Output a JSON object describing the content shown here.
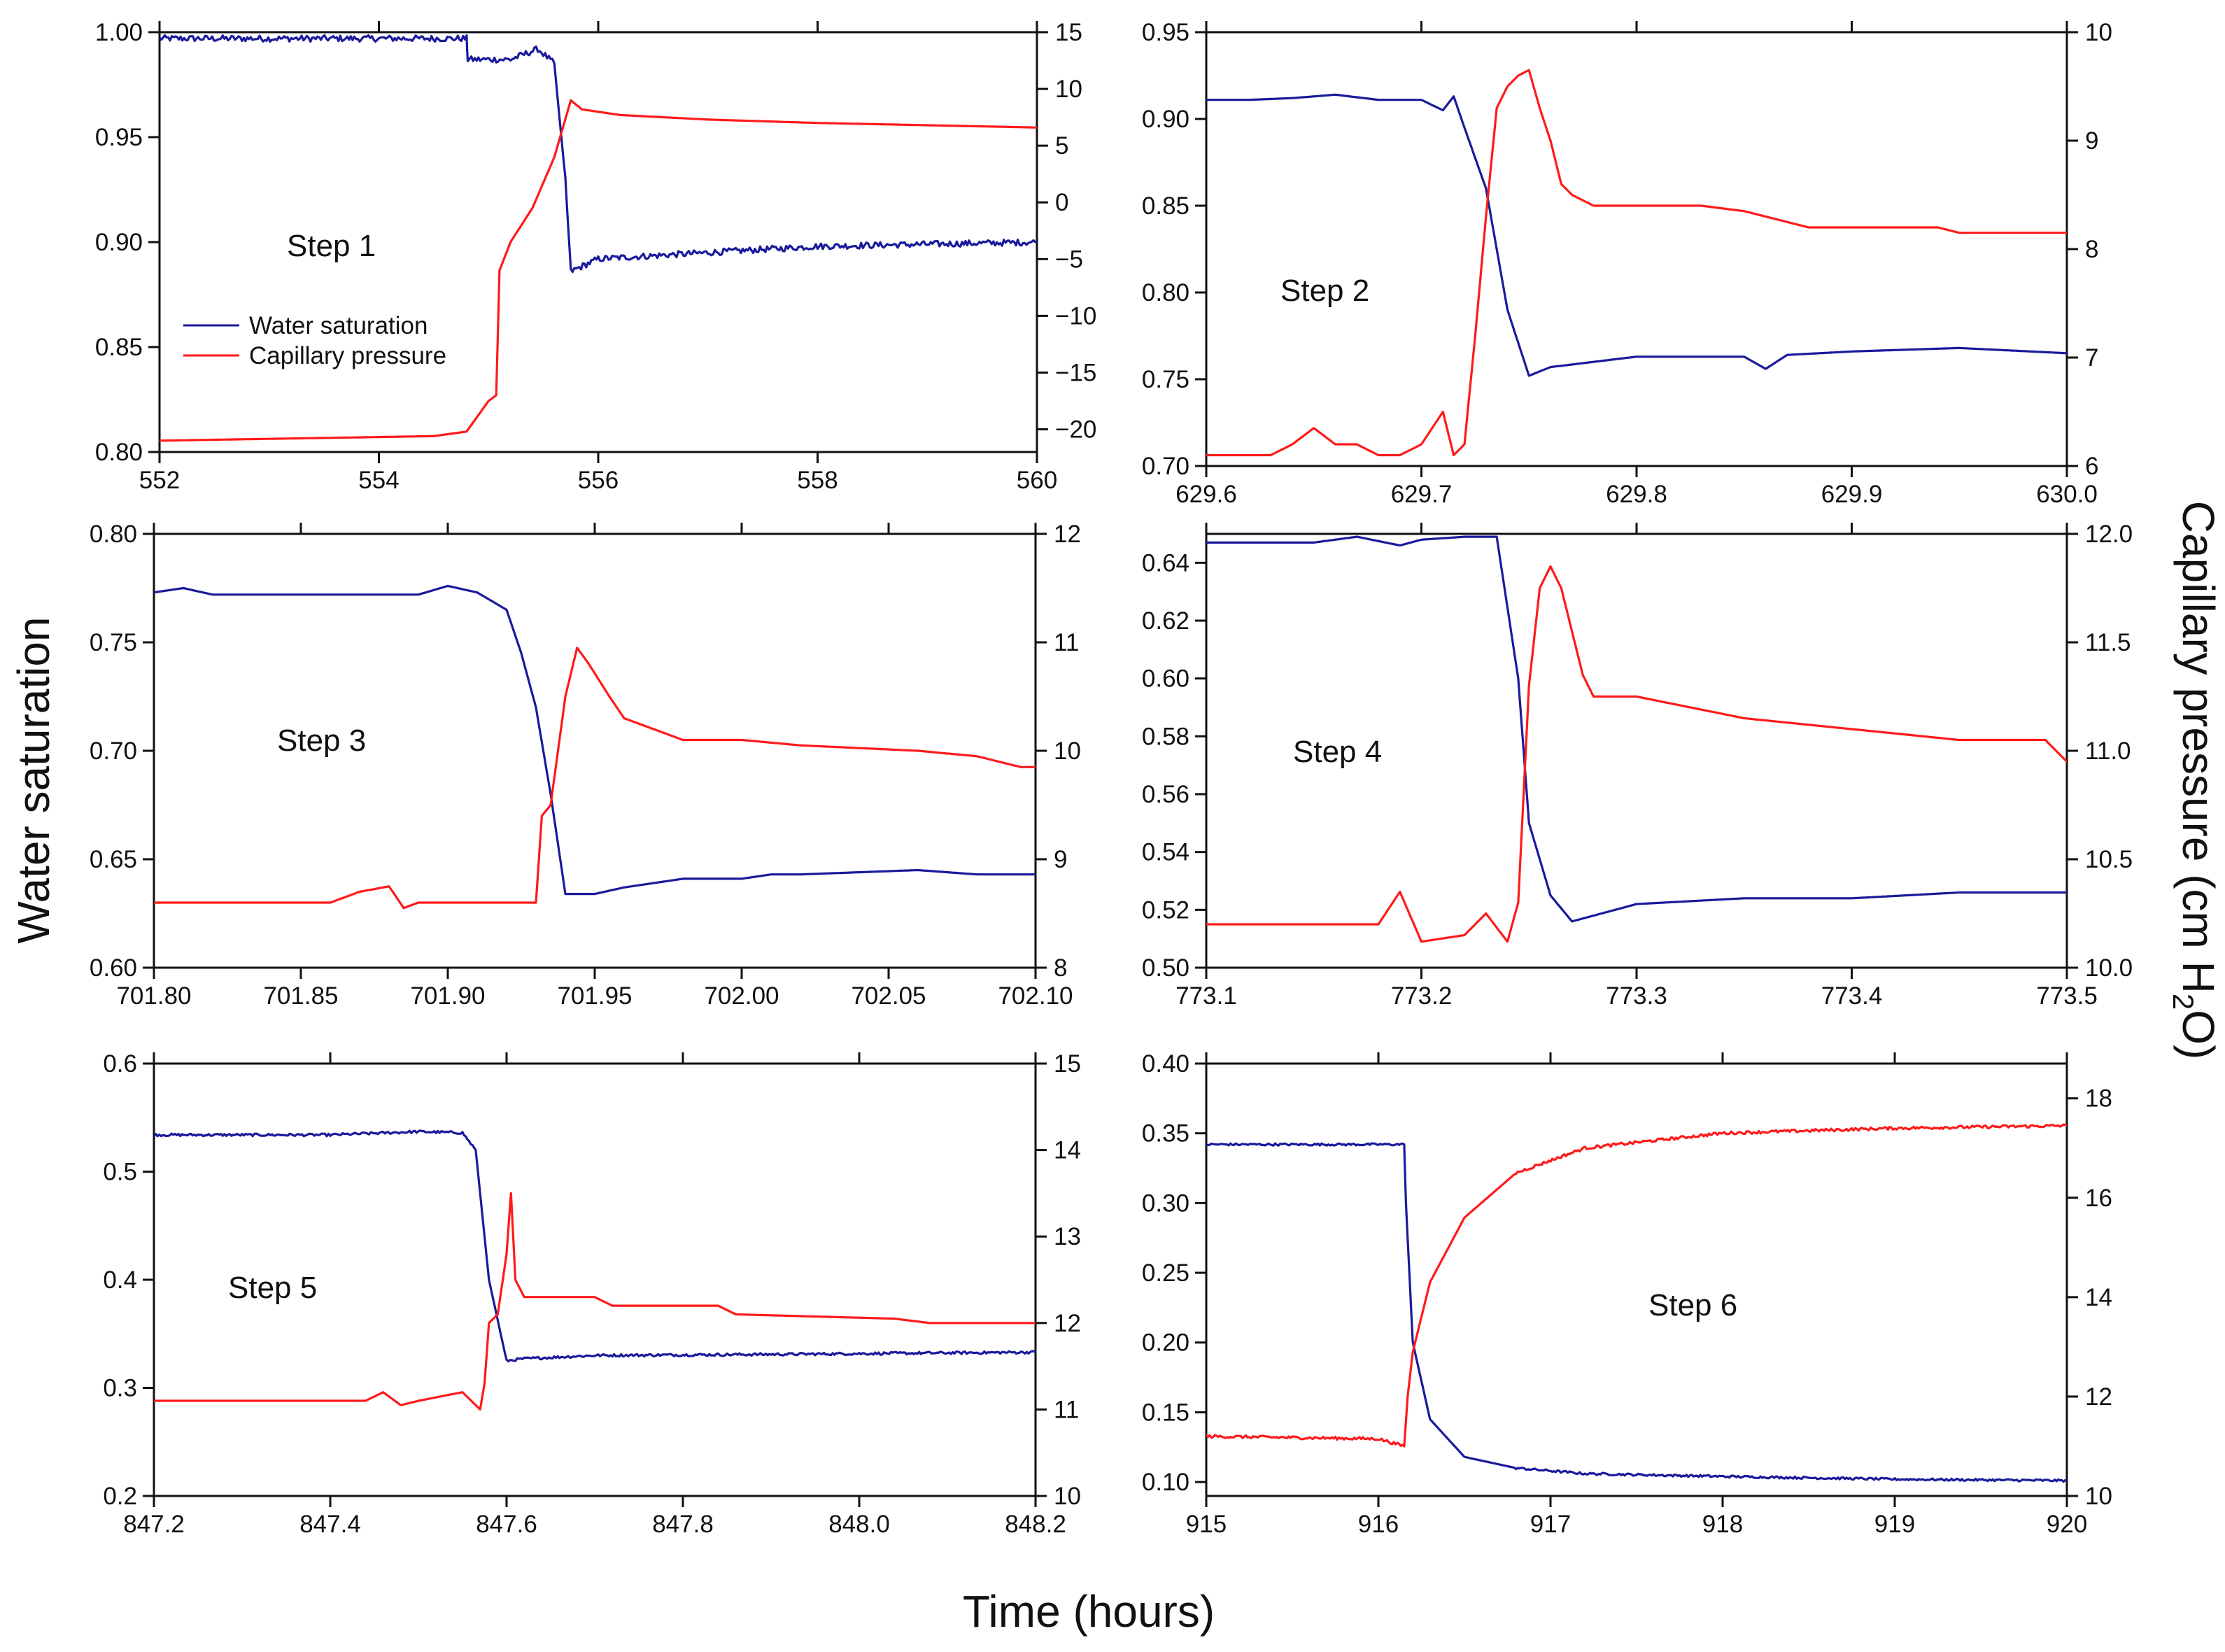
{
  "figure": {
    "xlabel": "Time (hours)",
    "ylabel_left": "Water saturation",
    "ylabel_right_main": "Capillary pressure (cm H",
    "ylabel_right_sub": "2",
    "ylabel_right_end": "O)"
  },
  "legend": {
    "items": [
      {
        "label": "Water saturation",
        "color": "#1a1a9c"
      },
      {
        "label": "Capillary pressure",
        "color": "#ff1a1a"
      }
    ]
  },
  "colors": {
    "saturation": "#1a1a9c",
    "pressure": "#ff1a1a",
    "axis": "#111111"
  },
  "chart_data": [
    {
      "type": "line",
      "label": "Step 1",
      "xlim": [
        552,
        560
      ],
      "ylim_left": [
        0.8,
        1.0
      ],
      "ylim_right": [
        -22,
        15
      ],
      "xticks": [
        552,
        554,
        556,
        558,
        560
      ],
      "xtick_labels": [
        "552",
        "554",
        "556",
        "558",
        "560"
      ],
      "yticks_left": [
        0.8,
        0.85,
        0.9,
        0.95,
        1.0
      ],
      "ytick_labels_left": [
        "0.80",
        "0.85",
        "0.90",
        "0.95",
        "1.00"
      ],
      "yticks_right": [
        -20,
        -15,
        -10,
        -5,
        0,
        5,
        10,
        15
      ],
      "ytick_labels_right": [
        "−20",
        "−15",
        "−10",
        "−5",
        "0",
        "5",
        "10",
        "15"
      ],
      "series": [
        {
          "name": "Water saturation",
          "axis": "left",
          "noise": 0.0015,
          "x": [
            552,
            554.8,
            554.81,
            555.2,
            555.45,
            555.6,
            555.7,
            555.75,
            556.0,
            557.0,
            558.0,
            559.0,
            560.0
          ],
          "y": [
            0.997,
            0.997,
            0.987,
            0.987,
            0.992,
            0.985,
            0.93,
            0.886,
            0.892,
            0.895,
            0.898,
            0.899,
            0.9
          ]
        },
        {
          "name": "Capillary pressure",
          "axis": "right",
          "noise": 0,
          "x": [
            552,
            554.5,
            554.8,
            555.0,
            555.07,
            555.1,
            555.2,
            555.4,
            555.6,
            555.75,
            555.85,
            556.2,
            557.0,
            558.0,
            559.0,
            560.0
          ],
          "y": [
            -21.0,
            -20.6,
            -20.2,
            -17.5,
            -17.0,
            -6.0,
            -3.5,
            -0.5,
            4.0,
            9.0,
            8.2,
            7.7,
            7.3,
            7.0,
            6.8,
            6.6
          ]
        }
      ]
    },
    {
      "type": "line",
      "label": "Step 2",
      "xlim": [
        629.6,
        630.0
      ],
      "ylim_left": [
        0.7,
        0.95
      ],
      "ylim_right": [
        6,
        10
      ],
      "xticks": [
        629.6,
        629.7,
        629.8,
        629.9,
        630.0
      ],
      "xtick_labels": [
        "629.6",
        "629.7",
        "629.8",
        "629.9",
        "630.0"
      ],
      "yticks_left": [
        0.7,
        0.75,
        0.8,
        0.85,
        0.9,
        0.95
      ],
      "ytick_labels_left": [
        "0.70",
        "0.75",
        "0.80",
        "0.85",
        "0.90",
        "0.95"
      ],
      "yticks_right": [
        6,
        7,
        8,
        9,
        10
      ],
      "ytick_labels_right": [
        "6",
        "7",
        "8",
        "9",
        "10"
      ],
      "series": [
        {
          "name": "Water saturation",
          "axis": "left",
          "noise": 0,
          "x": [
            629.6,
            629.62,
            629.64,
            629.66,
            629.68,
            629.7,
            629.71,
            629.715,
            629.72,
            629.73,
            629.74,
            629.75,
            629.76,
            629.8,
            629.85,
            629.86,
            629.87,
            629.9,
            629.95,
            630.0
          ],
          "y": [
            0.911,
            0.911,
            0.912,
            0.914,
            0.911,
            0.911,
            0.905,
            0.913,
            0.895,
            0.86,
            0.79,
            0.752,
            0.757,
            0.763,
            0.763,
            0.756,
            0.764,
            0.766,
            0.768,
            0.765
          ]
        },
        {
          "name": "Capillary pressure",
          "axis": "right",
          "noise": 0,
          "x": [
            629.6,
            629.63,
            629.64,
            629.65,
            629.66,
            629.67,
            629.68,
            629.69,
            629.7,
            629.71,
            629.715,
            629.72,
            629.725,
            629.73,
            629.735,
            629.74,
            629.745,
            629.75,
            629.755,
            629.76,
            629.765,
            629.77,
            629.78,
            629.8,
            629.83,
            629.85,
            629.86,
            629.88,
            629.9,
            629.94,
            629.95,
            630.0
          ],
          "y": [
            6.1,
            6.1,
            6.2,
            6.35,
            6.2,
            6.2,
            6.1,
            6.1,
            6.2,
            6.5,
            6.1,
            6.2,
            7.2,
            8.3,
            9.3,
            9.5,
            9.6,
            9.65,
            9.3,
            9.0,
            8.6,
            8.5,
            8.4,
            8.4,
            8.4,
            8.35,
            8.3,
            8.2,
            8.2,
            8.2,
            8.15,
            8.15
          ]
        }
      ]
    },
    {
      "type": "line",
      "label": "Step 3",
      "xlim": [
        701.8,
        702.1
      ],
      "ylim_left": [
        0.6,
        0.8
      ],
      "ylim_right": [
        8,
        12
      ],
      "xticks": [
        701.8,
        701.85,
        701.9,
        701.95,
        702.0,
        702.05,
        702.1
      ],
      "xtick_labels": [
        "701.80",
        "701.85",
        "701.90",
        "701.95",
        "702.00",
        "702.05",
        "702.10"
      ],
      "yticks_left": [
        0.6,
        0.65,
        0.7,
        0.75,
        0.8
      ],
      "ytick_labels_left": [
        "0.60",
        "0.65",
        "0.70",
        "0.75",
        "0.80"
      ],
      "yticks_right": [
        8,
        9,
        10,
        11,
        12
      ],
      "ytick_labels_right": [
        "8",
        "9",
        "10",
        "11",
        "12"
      ],
      "series": [
        {
          "name": "Water saturation",
          "axis": "left",
          "noise": 0,
          "x": [
            701.8,
            701.81,
            701.82,
            701.87,
            701.89,
            701.9,
            701.91,
            701.92,
            701.925,
            701.93,
            701.935,
            701.94,
            701.95,
            701.96,
            701.98,
            702.0,
            702.01,
            702.02,
            702.06,
            702.08,
            702.1
          ],
          "y": [
            0.773,
            0.775,
            0.772,
            0.772,
            0.772,
            0.776,
            0.773,
            0.765,
            0.745,
            0.72,
            0.68,
            0.634,
            0.634,
            0.637,
            0.641,
            0.641,
            0.643,
            0.643,
            0.645,
            0.643,
            0.643
          ]
        },
        {
          "name": "Capillary pressure",
          "axis": "right",
          "noise": 0,
          "x": [
            701.8,
            701.86,
            701.87,
            701.88,
            701.885,
            701.89,
            701.93,
            701.932,
            701.935,
            701.94,
            701.944,
            701.948,
            701.955,
            701.96,
            701.97,
            701.98,
            702.0,
            702.02,
            702.06,
            702.08,
            702.095,
            702.1
          ],
          "y": [
            8.6,
            8.6,
            8.7,
            8.75,
            8.55,
            8.6,
            8.6,
            9.4,
            9.5,
            10.5,
            10.95,
            10.8,
            10.5,
            10.3,
            10.2,
            10.1,
            10.1,
            10.05,
            10.0,
            9.95,
            9.85,
            9.85
          ]
        }
      ]
    },
    {
      "type": "line",
      "label": "Step 4",
      "xlim": [
        773.1,
        773.5
      ],
      "ylim_left": [
        0.5,
        0.65
      ],
      "ylim_right": [
        10.0,
        12.0
      ],
      "xticks": [
        773.1,
        773.2,
        773.3,
        773.4,
        773.5
      ],
      "xtick_labels": [
        "773.1",
        "773.2",
        "773.3",
        "773.4",
        "773.5"
      ],
      "yticks_left": [
        0.5,
        0.52,
        0.54,
        0.56,
        0.58,
        0.6,
        0.62,
        0.64
      ],
      "ytick_labels_left": [
        "0.50",
        "0.52",
        "0.54",
        "0.56",
        "0.58",
        "0.60",
        "0.62",
        "0.64"
      ],
      "yticks_right": [
        10.0,
        10.5,
        11.0,
        11.5,
        12.0
      ],
      "ytick_labels_right": [
        "10.0",
        "10.5",
        "11.0",
        "11.5",
        "12.0"
      ],
      "series": [
        {
          "name": "Water saturation",
          "axis": "left",
          "noise": 0,
          "x": [
            773.1,
            773.15,
            773.17,
            773.19,
            773.2,
            773.22,
            773.235,
            773.245,
            773.25,
            773.26,
            773.27,
            773.3,
            773.35,
            773.4,
            773.45,
            773.5
          ],
          "y": [
            0.647,
            0.647,
            0.649,
            0.646,
            0.648,
            0.649,
            0.649,
            0.6,
            0.55,
            0.525,
            0.516,
            0.522,
            0.524,
            0.524,
            0.526,
            0.526
          ]
        },
        {
          "name": "Capillary pressure",
          "axis": "right",
          "noise": 0,
          "x": [
            773.1,
            773.18,
            773.19,
            773.2,
            773.22,
            773.23,
            773.24,
            773.245,
            773.25,
            773.255,
            773.26,
            773.265,
            773.27,
            773.275,
            773.28,
            773.3,
            773.35,
            773.4,
            773.45,
            773.49,
            773.5
          ],
          "y": [
            10.2,
            10.2,
            10.35,
            10.12,
            10.15,
            10.25,
            10.12,
            10.3,
            11.3,
            11.75,
            11.85,
            11.75,
            11.55,
            11.35,
            11.25,
            11.25,
            11.15,
            11.1,
            11.05,
            11.05,
            10.95
          ]
        }
      ]
    },
    {
      "type": "line",
      "label": "Step 5",
      "xlim": [
        847.2,
        848.2
      ],
      "ylim_left": [
        0.2,
        0.6
      ],
      "ylim_right": [
        10,
        15
      ],
      "xticks": [
        847.2,
        847.4,
        847.6,
        847.8,
        848.0,
        848.2
      ],
      "xtick_labels": [
        "847.2",
        "847.4",
        "847.6",
        "847.8",
        "848.0",
        "848.2"
      ],
      "yticks_left": [
        0.2,
        0.3,
        0.4,
        0.5,
        0.6
      ],
      "ytick_labels_left": [
        "0.2",
        "0.3",
        "0.4",
        "0.5",
        "0.6"
      ],
      "yticks_right": [
        10,
        11,
        12,
        13,
        14,
        15
      ],
      "ytick_labels_right": [
        "10",
        "11",
        "12",
        "13",
        "14",
        "15"
      ],
      "series": [
        {
          "name": "Water saturation",
          "axis": "left",
          "noise": 0.0012,
          "x": [
            847.2,
            847.4,
            847.5,
            847.55,
            847.565,
            847.58,
            847.6,
            847.62,
            847.7,
            847.9,
            848.2
          ],
          "y": [
            0.534,
            0.534,
            0.537,
            0.536,
            0.52,
            0.4,
            0.325,
            0.327,
            0.33,
            0.331,
            0.333
          ]
        },
        {
          "name": "Capillary pressure",
          "axis": "right",
          "noise": 0,
          "x": [
            847.2,
            847.44,
            847.46,
            847.48,
            847.5,
            847.55,
            847.57,
            847.575,
            847.58,
            847.59,
            847.6,
            847.605,
            847.61,
            847.62,
            847.7,
            847.72,
            847.84,
            847.86,
            848.04,
            848.08,
            848.2
          ],
          "y": [
            11.1,
            11.1,
            11.2,
            11.05,
            11.1,
            11.2,
            11.0,
            11.3,
            12.0,
            12.1,
            12.8,
            13.5,
            12.5,
            12.3,
            12.3,
            12.2,
            12.2,
            12.1,
            12.05,
            12.0,
            12.0
          ]
        }
      ]
    },
    {
      "type": "line",
      "label": "Step 6",
      "xlim": [
        915,
        920
      ],
      "ylim_left": [
        0.09,
        0.4
      ],
      "ylim_right": [
        10,
        18.7
      ],
      "xticks": [
        915,
        916,
        917,
        918,
        919,
        920
      ],
      "xtick_labels": [
        "915",
        "916",
        "917",
        "918",
        "919",
        "920"
      ],
      "yticks_left": [
        0.1,
        0.15,
        0.2,
        0.25,
        0.3,
        0.35,
        0.4
      ],
      "ytick_labels_left": [
        "0.10",
        "0.15",
        "0.20",
        "0.25",
        "0.30",
        "0.35",
        "0.40"
      ],
      "yticks_right": [
        10,
        12,
        14,
        16,
        18
      ],
      "ytick_labels_right": [
        "10",
        "12",
        "14",
        "16",
        "18"
      ],
      "series": [
        {
          "name": "Water saturation",
          "axis": "left",
          "noise": 0.0008,
          "x": [
            915.0,
            916.15,
            916.16,
            916.2,
            916.3,
            916.5,
            916.8,
            917.2,
            918.0,
            919.0,
            920.0
          ],
          "y": [
            0.342,
            0.342,
            0.3,
            0.2,
            0.145,
            0.118,
            0.11,
            0.106,
            0.104,
            0.102,
            0.101
          ]
        },
        {
          "name": "Capillary pressure",
          "axis": "right",
          "noise": 0.03,
          "x": [
            915.0,
            916.0,
            916.15,
            916.17,
            916.2,
            916.3,
            916.5,
            916.8,
            917.2,
            918.0,
            919.0,
            920.0
          ],
          "y": [
            11.2,
            11.15,
            11.0,
            12.0,
            12.9,
            14.3,
            15.6,
            16.5,
            17.0,
            17.3,
            17.4,
            17.45
          ]
        }
      ]
    }
  ]
}
